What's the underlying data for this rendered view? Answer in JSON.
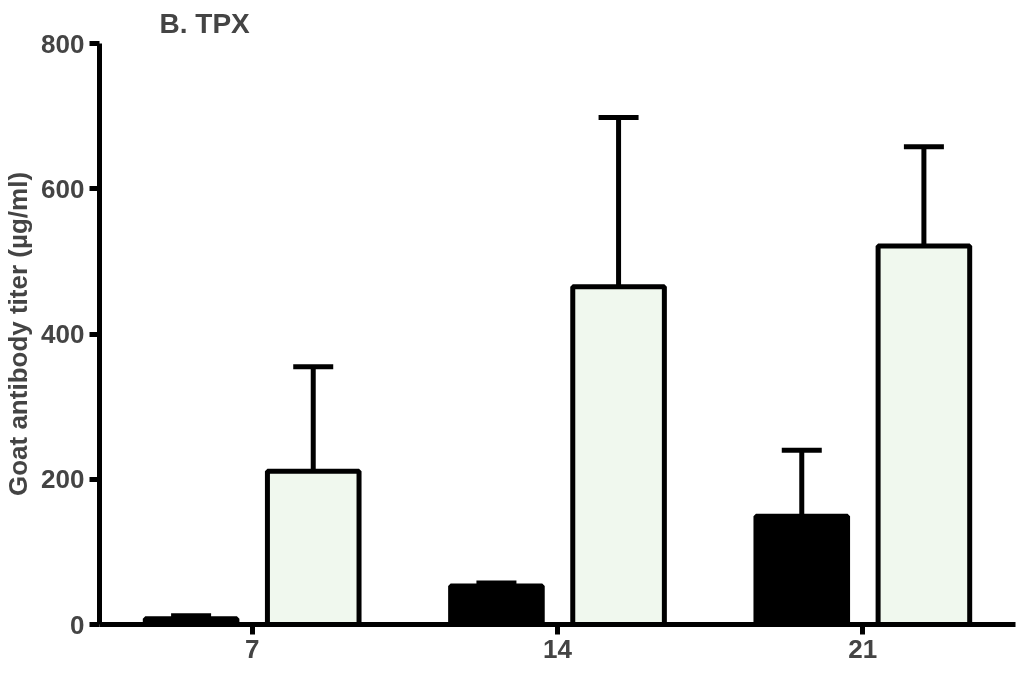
{
  "chart_data": {
    "type": "bar",
    "title": "B. TPX",
    "ylabel": "Goat antibody titer (µg/ml)",
    "categories": [
      "7",
      "14",
      "21"
    ],
    "series": [
      {
        "color": "#000000",
        "values": [
          8,
          53,
          149
        ],
        "errors": [
          [
            8,
            12
          ],
          [
            53,
            57
          ],
          [
            149,
            240
          ]
        ]
      },
      {
        "color": "#f0f8ee",
        "values": [
          211,
          465,
          521
        ],
        "errors": [
          [
            211,
            355
          ],
          [
            465,
            698
          ],
          [
            521,
            658
          ]
        ]
      }
    ],
    "ylim": [
      0,
      800
    ],
    "yticks": [
      0,
      200,
      400,
      600,
      800
    ],
    "grid": false
  }
}
